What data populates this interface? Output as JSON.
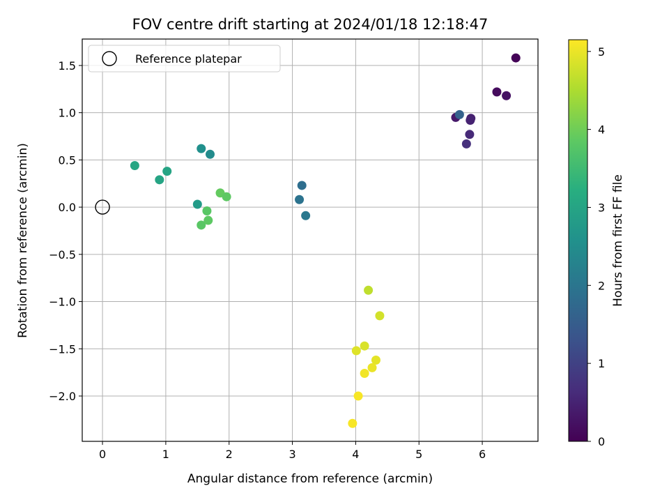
{
  "chart_data": {
    "type": "scatter",
    "title": "FOV centre drift starting at 2024/01/18 12:18:47",
    "xlabel": "Angular distance from reference (arcmin)",
    "ylabel": "Rotation from reference (arcmin)",
    "xlim": [
      -0.32,
      6.88
    ],
    "ylim": [
      -2.48,
      1.78
    ],
    "xticks": [
      0,
      1,
      2,
      3,
      4,
      5,
      6
    ],
    "yticks": [
      -2.0,
      -1.5,
      -1.0,
      -0.5,
      0.0,
      0.5,
      1.0,
      1.5
    ],
    "ytick_labels": [
      "−2.0",
      "−1.5",
      "−1.0",
      "−0.5",
      "0.0",
      "0.5",
      "1.0",
      "1.5"
    ],
    "grid": true,
    "colormap": "viridis",
    "colorbar": {
      "label": "Hours from first FF file",
      "range": [
        0,
        5.15
      ],
      "ticks": [
        0,
        1,
        2,
        3,
        4,
        5
      ]
    },
    "legend": {
      "position": "upper-left",
      "entries": [
        "Reference platepar"
      ]
    },
    "reference_point": {
      "x": 0,
      "y": 0
    },
    "points": [
      {
        "x": 6.53,
        "y": 1.58,
        "hours": 0.05
      },
      {
        "x": 6.23,
        "y": 1.22,
        "hours": 0.15
      },
      {
        "x": 6.38,
        "y": 1.18,
        "hours": 0.25
      },
      {
        "x": 5.58,
        "y": 0.95,
        "hours": 0.35
      },
      {
        "x": 5.82,
        "y": 0.94,
        "hours": 0.45
      },
      {
        "x": 5.81,
        "y": 0.92,
        "hours": 0.5
      },
      {
        "x": 5.8,
        "y": 0.77,
        "hours": 0.6
      },
      {
        "x": 5.75,
        "y": 0.67,
        "hours": 0.7
      },
      {
        "x": 5.64,
        "y": 0.98,
        "hours": 1.6
      },
      {
        "x": 3.15,
        "y": 0.23,
        "hours": 1.85
      },
      {
        "x": 3.11,
        "y": 0.08,
        "hours": 1.95
      },
      {
        "x": 3.21,
        "y": -0.09,
        "hours": 2.05
      },
      {
        "x": 1.7,
        "y": 0.56,
        "hours": 2.45
      },
      {
        "x": 1.56,
        "y": 0.62,
        "hours": 2.55
      },
      {
        "x": 1.5,
        "y": 0.03,
        "hours": 2.8
      },
      {
        "x": 1.02,
        "y": 0.38,
        "hours": 3.0
      },
      {
        "x": 0.9,
        "y": 0.29,
        "hours": 3.0
      },
      {
        "x": 0.51,
        "y": 0.44,
        "hours": 3.05
      },
      {
        "x": 1.56,
        "y": -0.19,
        "hours": 3.8
      },
      {
        "x": 1.67,
        "y": -0.14,
        "hours": 3.85
      },
      {
        "x": 1.65,
        "y": -0.04,
        "hours": 3.8
      },
      {
        "x": 1.86,
        "y": 0.15,
        "hours": 3.9
      },
      {
        "x": 1.96,
        "y": 0.11,
        "hours": 3.85
      },
      {
        "x": 4.2,
        "y": -0.88,
        "hours": 4.65
      },
      {
        "x": 4.38,
        "y": -1.15,
        "hours": 4.8
      },
      {
        "x": 4.14,
        "y": -1.47,
        "hours": 4.85
      },
      {
        "x": 4.01,
        "y": -1.52,
        "hours": 4.9
      },
      {
        "x": 4.32,
        "y": -1.62,
        "hours": 4.95
      },
      {
        "x": 4.26,
        "y": -1.7,
        "hours": 5.0
      },
      {
        "x": 4.14,
        "y": -1.76,
        "hours": 5.05
      },
      {
        "x": 4.04,
        "y": -2.0,
        "hours": 5.1
      },
      {
        "x": 3.95,
        "y": -2.29,
        "hours": 5.1
      }
    ]
  }
}
